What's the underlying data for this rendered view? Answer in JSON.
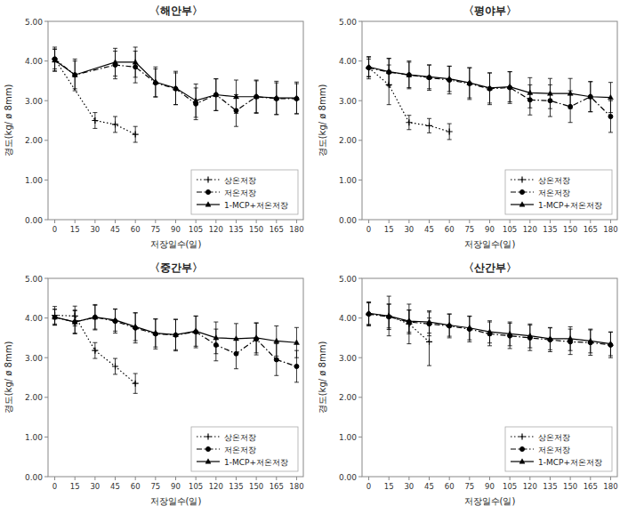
{
  "chart_data": [
    {
      "type": "line",
      "title": "〈해안부〉",
      "xlabel": "저장일수(일)",
      "ylabel": "경도(kg/ ø 8mm)",
      "x": [
        0,
        15,
        30,
        45,
        60,
        75,
        90,
        105,
        120,
        135,
        150,
        165,
        180
      ],
      "xlim": [
        -5,
        185
      ],
      "xticks": [
        0,
        15,
        30,
        45,
        60,
        75,
        90,
        105,
        120,
        135,
        150,
        165,
        180
      ],
      "ylim": [
        0.0,
        5.0
      ],
      "yticks": [
        {
          "value": 0.0,
          "label": "0.00"
        },
        {
          "value": 1.0,
          "label": "1.00"
        },
        {
          "value": 2.0,
          "label": "2.00"
        },
        {
          "value": 3.0,
          "label": "3.00"
        },
        {
          "value": 4.0,
          "label": "4.00"
        },
        {
          "value": 5.0,
          "label": "5.00"
        }
      ],
      "grid": false,
      "legend": "lower right",
      "series": [
        {
          "name": "상온저장",
          "color": "black",
          "line_style": "dotted",
          "marker": "plus",
          "values": [
            4.05,
            null,
            2.5,
            2.4,
            2.15,
            null,
            null,
            null,
            null,
            null,
            null,
            null,
            null
          ],
          "errors": [
            0.25,
            null,
            0.2,
            0.2,
            0.2,
            null,
            null,
            null,
            null,
            null,
            null,
            null,
            null
          ]
        },
        {
          "name": "저온저장",
          "color": "black",
          "line_style": "dashdot",
          "marker": "circle",
          "values": [
            4.05,
            3.65,
            null,
            3.9,
            3.85,
            3.45,
            3.3,
            2.92,
            3.15,
            2.75,
            3.1,
            3.05,
            3.05
          ],
          "errors": [
            0.3,
            0.4,
            null,
            0.35,
            0.4,
            0.35,
            0.4,
            0.4,
            0.4,
            0.4,
            0.4,
            0.4,
            0.38
          ]
        },
        {
          "name": "1-MCP+저온저장",
          "color": "black",
          "line_style": "solid",
          "marker": "triangle",
          "values": [
            4.02,
            3.65,
            null,
            3.97,
            3.97,
            3.47,
            3.32,
            3.0,
            3.15,
            3.1,
            3.1,
            3.07,
            3.07
          ],
          "errors": [
            0.28,
            0.35,
            null,
            0.35,
            0.38,
            0.38,
            0.42,
            0.42,
            0.4,
            0.42,
            0.42,
            0.42,
            0.4
          ]
        }
      ]
    },
    {
      "type": "line",
      "title": "〈평야부〉",
      "xlabel": "저장일수(일)",
      "ylabel": "경도(kg/ ø 8mm)",
      "x": [
        0,
        15,
        30,
        45,
        60,
        75,
        90,
        105,
        120,
        135,
        150,
        165,
        180
      ],
      "xlim": [
        -5,
        185
      ],
      "xticks": [
        0,
        15,
        30,
        45,
        60,
        75,
        90,
        105,
        120,
        135,
        150,
        165,
        180
      ],
      "ylim": [
        0.0,
        5.0
      ],
      "yticks": [
        {
          "value": 0.0,
          "label": "0.00"
        },
        {
          "value": 1.0,
          "label": "1.00"
        },
        {
          "value": 2.0,
          "label": "2.00"
        },
        {
          "value": 3.0,
          "label": "3.00"
        },
        {
          "value": 4.0,
          "label": "4.00"
        },
        {
          "value": 5.0,
          "label": "5.00"
        }
      ],
      "grid": false,
      "legend": "lower right",
      "series": [
        {
          "name": "상온저장",
          "color": "black",
          "line_style": "dotted",
          "marker": "plus",
          "values": [
            3.83,
            3.4,
            2.45,
            2.37,
            2.22,
            null,
            null,
            null,
            null,
            null,
            null,
            null,
            null
          ],
          "errors": [
            0.22,
            0.5,
            0.18,
            0.18,
            0.2,
            null,
            null,
            null,
            null,
            null,
            null,
            null,
            null
          ]
        },
        {
          "name": "저온저장",
          "color": "black",
          "line_style": "dashdot",
          "marker": "circle",
          "values": [
            3.83,
            3.72,
            3.65,
            3.58,
            3.52,
            3.43,
            3.3,
            3.33,
            3.02,
            3.0,
            2.85,
            3.1,
            2.6
          ],
          "errors": [
            0.28,
            0.35,
            0.35,
            0.32,
            0.35,
            0.4,
            0.4,
            0.4,
            0.38,
            0.4,
            0.4,
            0.38,
            0.4
          ]
        },
        {
          "name": "1-MCP+저온저장",
          "color": "black",
          "line_style": "solid",
          "marker": "triangle",
          "values": [
            3.85,
            3.73,
            3.65,
            3.6,
            3.55,
            3.45,
            3.32,
            3.35,
            3.2,
            3.18,
            3.18,
            3.1,
            3.08
          ],
          "errors": [
            0.25,
            0.33,
            0.32,
            0.3,
            0.32,
            0.38,
            0.38,
            0.38,
            0.38,
            0.38,
            0.38,
            0.38,
            0.38
          ]
        }
      ]
    },
    {
      "type": "line",
      "title": "〈중간부〉",
      "xlabel": "저장일수(일)",
      "ylabel": "경도(kg/ ø 8mm)",
      "x": [
        0,
        15,
        30,
        45,
        60,
        75,
        90,
        105,
        120,
        135,
        150,
        165,
        180
      ],
      "xlim": [
        -5,
        185
      ],
      "xticks": [
        0,
        15,
        30,
        45,
        60,
        75,
        90,
        105,
        120,
        135,
        150,
        165,
        180
      ],
      "ylim": [
        0.0,
        5.0
      ],
      "yticks": [
        {
          "value": 0.0,
          "label": "0.00"
        },
        {
          "value": 1.0,
          "label": "1.00"
        },
        {
          "value": 2.0,
          "label": "2.00"
        },
        {
          "value": 3.0,
          "label": "3.00"
        },
        {
          "value": 4.0,
          "label": "4.00"
        },
        {
          "value": 5.0,
          "label": "5.00"
        }
      ],
      "grid": false,
      "legend": "lower right",
      "series": [
        {
          "name": "상온저장",
          "color": "black",
          "line_style": "dotted",
          "marker": "plus",
          "values": [
            4.07,
            4.05,
            3.18,
            2.78,
            2.35,
            null,
            null,
            null,
            null,
            null,
            null,
            null,
            null
          ],
          "errors": [
            0.22,
            0.25,
            0.2,
            0.2,
            0.25,
            null,
            null,
            null,
            null,
            null,
            null,
            null,
            null
          ]
        },
        {
          "name": "저온저장",
          "color": "black",
          "line_style": "dashdot",
          "marker": "circle",
          "values": [
            4.02,
            3.9,
            4.02,
            3.92,
            3.75,
            3.6,
            3.57,
            3.65,
            3.32,
            3.1,
            3.47,
            2.95,
            2.78
          ],
          "errors": [
            0.2,
            0.3,
            0.32,
            0.3,
            0.38,
            0.38,
            0.4,
            0.4,
            0.4,
            0.38,
            0.4,
            0.4,
            0.4
          ]
        },
        {
          "name": "1-MCP+저온저장",
          "color": "black",
          "line_style": "solid",
          "marker": "triangle",
          "values": [
            4.02,
            3.9,
            4.02,
            3.95,
            3.78,
            3.62,
            3.58,
            3.67,
            3.5,
            3.48,
            3.5,
            3.42,
            3.38
          ],
          "errors": [
            0.2,
            0.28,
            0.3,
            0.28,
            0.35,
            0.35,
            0.38,
            0.38,
            0.4,
            0.38,
            0.38,
            0.38,
            0.38
          ]
        }
      ]
    },
    {
      "type": "line",
      "title": "〈산간부〉",
      "xlabel": "저장일수(일)",
      "ylabel": "경도(kg/ ø 8mm)",
      "x": [
        0,
        15,
        30,
        45,
        60,
        75,
        90,
        105,
        120,
        135,
        150,
        165,
        180
      ],
      "xlim": [
        -5,
        185
      ],
      "xticks": [
        0,
        15,
        30,
        45,
        60,
        75,
        90,
        105,
        120,
        135,
        150,
        165,
        180
      ],
      "ylim": [
        0.0,
        5.0
      ],
      "yticks": [
        {
          "value": 0.0,
          "label": "0.00"
        },
        {
          "value": 1.0,
          "label": "1.00"
        },
        {
          "value": 2.0,
          "label": "2.00"
        },
        {
          "value": 3.0,
          "label": "3.00"
        },
        {
          "value": 4.0,
          "label": "4.00"
        },
        {
          "value": 5.0,
          "label": "5.00"
        }
      ],
      "grid": false,
      "legend": "lower right",
      "series": [
        {
          "name": "상온저장",
          "color": "black",
          "line_style": "dotted",
          "marker": "plus",
          "values": [
            4.1,
            4.05,
            3.85,
            3.4,
            null,
            null,
            null,
            null,
            null,
            null,
            null,
            null,
            null
          ],
          "errors": [
            0.3,
            0.5,
            0.5,
            0.6,
            null,
            null,
            null,
            null,
            null,
            null,
            null,
            null,
            null
          ]
        },
        {
          "name": "저온저장",
          "color": "black",
          "line_style": "dashdot",
          "marker": "circle",
          "values": [
            4.1,
            4.03,
            3.9,
            3.85,
            3.8,
            3.72,
            3.6,
            3.55,
            3.5,
            3.45,
            3.4,
            3.38,
            3.32
          ],
          "errors": [
            0.28,
            0.32,
            0.3,
            0.3,
            0.3,
            0.32,
            0.3,
            0.32,
            0.32,
            0.3,
            0.32,
            0.32,
            0.32
          ]
        },
        {
          "name": "1-MCP+저온저장",
          "color": "black",
          "line_style": "solid",
          "marker": "triangle",
          "values": [
            4.12,
            4.05,
            3.92,
            3.9,
            3.82,
            3.75,
            3.65,
            3.6,
            3.55,
            3.48,
            3.48,
            3.42,
            3.35
          ],
          "errors": [
            0.28,
            0.3,
            0.28,
            0.28,
            0.28,
            0.3,
            0.28,
            0.3,
            0.3,
            0.28,
            0.3,
            0.3,
            0.3
          ]
        }
      ]
    }
  ]
}
